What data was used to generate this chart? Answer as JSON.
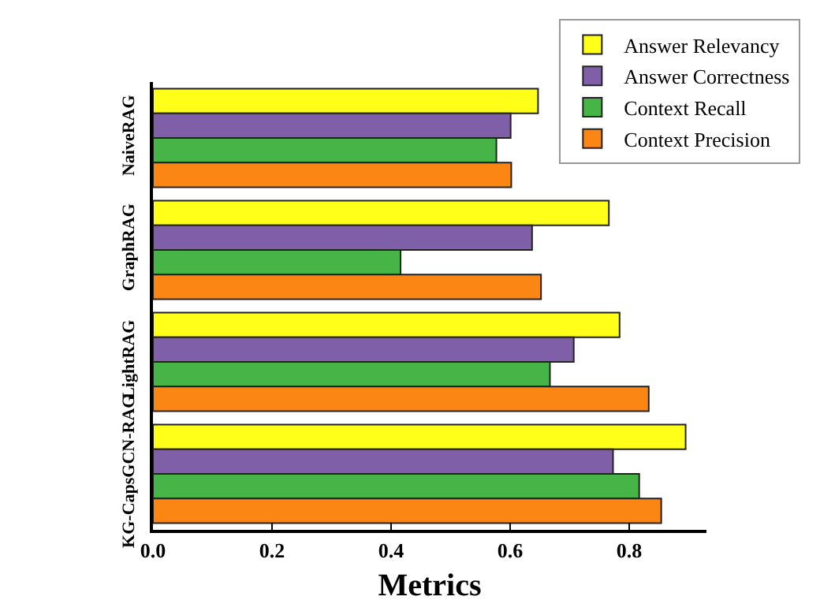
{
  "chart_data": {
    "type": "bar",
    "orientation": "horizontal",
    "xlabel": "Metrics",
    "categories": [
      "NaiveRAG",
      "GraphRAG",
      "LightRAG",
      "KG-CapsGCN-RAG"
    ],
    "series": [
      {
        "name": "Answer Relevancy",
        "color": "#ffff1a",
        "values": [
          0.647,
          0.766,
          0.784,
          0.895
        ]
      },
      {
        "name": "Answer Correctness",
        "color": "#7f5fa8",
        "values": [
          0.601,
          0.637,
          0.707,
          0.773
        ]
      },
      {
        "name": "Context Recall",
        "color": "#46b446",
        "values": [
          0.577,
          0.416,
          0.667,
          0.817
        ]
      },
      {
        "name": "Context Precision",
        "color": "#fc8613",
        "values": [
          0.602,
          0.652,
          0.833,
          0.854
        ]
      }
    ],
    "xlim": [
      0,
      0.93
    ],
    "xticks": [
      {
        "value": 0,
        "label": "0.0"
      },
      {
        "value": 0.2,
        "label": "0.2"
      },
      {
        "value": 0.4,
        "label": "0.4"
      },
      {
        "value": 0.6,
        "label": "0.6"
      },
      {
        "value": 0.8,
        "label": "0.8"
      }
    ],
    "legend": "top right",
    "grid": false
  }
}
